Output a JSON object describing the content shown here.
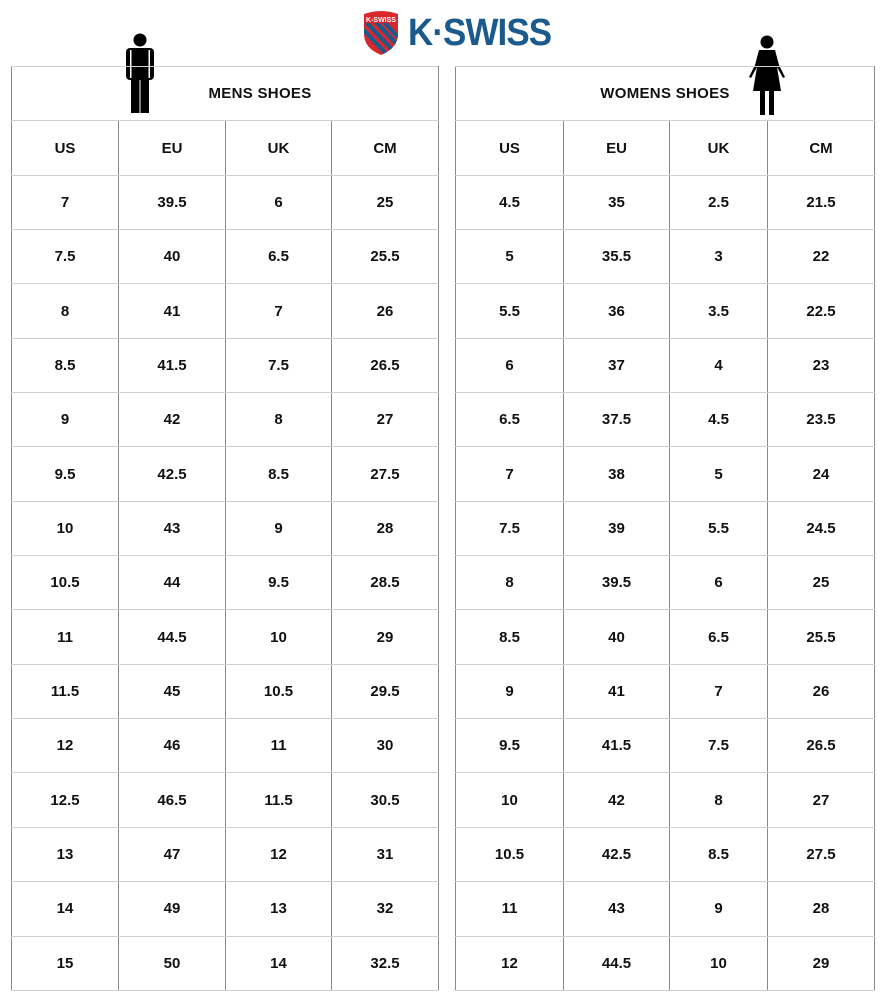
{
  "brand": {
    "name": "K·SWISS",
    "shield_text": "K-SWISS",
    "color": "#1b5a8c",
    "accent": "#d8282f"
  },
  "mens": {
    "title": "MENS SHOES",
    "icon": "man-icon",
    "columns": [
      "US",
      "EU",
      "UK",
      "CM"
    ],
    "rows": [
      [
        "7",
        "39.5",
        "6",
        "25"
      ],
      [
        "7.5",
        "40",
        "6.5",
        "25.5"
      ],
      [
        "8",
        "41",
        "7",
        "26"
      ],
      [
        "8.5",
        "41.5",
        "7.5",
        "26.5"
      ],
      [
        "9",
        "42",
        "8",
        "27"
      ],
      [
        "9.5",
        "42.5",
        "8.5",
        "27.5"
      ],
      [
        "10",
        "43",
        "9",
        "28"
      ],
      [
        "10.5",
        "44",
        "9.5",
        "28.5"
      ],
      [
        "11",
        "44.5",
        "10",
        "29"
      ],
      [
        "11.5",
        "45",
        "10.5",
        "29.5"
      ],
      [
        "12",
        "46",
        "11",
        "30"
      ],
      [
        "12.5",
        "46.5",
        "11.5",
        "30.5"
      ],
      [
        "13",
        "47",
        "12",
        "31"
      ],
      [
        "14",
        "49",
        "13",
        "32"
      ],
      [
        "15",
        "50",
        "14",
        "32.5"
      ]
    ]
  },
  "womens": {
    "title": "WOMENS SHOES",
    "icon": "woman-icon",
    "columns": [
      "US",
      "EU",
      "UK",
      "CM"
    ],
    "rows": [
      [
        "4.5",
        "35",
        "2.5",
        "21.5"
      ],
      [
        "5",
        "35.5",
        "3",
        "22"
      ],
      [
        "5.5",
        "36",
        "3.5",
        "22.5"
      ],
      [
        "6",
        "37",
        "4",
        "23"
      ],
      [
        "6.5",
        "37.5",
        "4.5",
        "23.5"
      ],
      [
        "7",
        "38",
        "5",
        "24"
      ],
      [
        "7.5",
        "39",
        "5.5",
        "24.5"
      ],
      [
        "8",
        "39.5",
        "6",
        "25"
      ],
      [
        "8.5",
        "40",
        "6.5",
        "25.5"
      ],
      [
        "9",
        "41",
        "7",
        "26"
      ],
      [
        "9.5",
        "41.5",
        "7.5",
        "26.5"
      ],
      [
        "10",
        "42",
        "8",
        "27"
      ],
      [
        "10.5",
        "42.5",
        "8.5",
        "27.5"
      ],
      [
        "11",
        "43",
        "9",
        "28"
      ],
      [
        "12",
        "44.5",
        "10",
        "29"
      ]
    ]
  }
}
